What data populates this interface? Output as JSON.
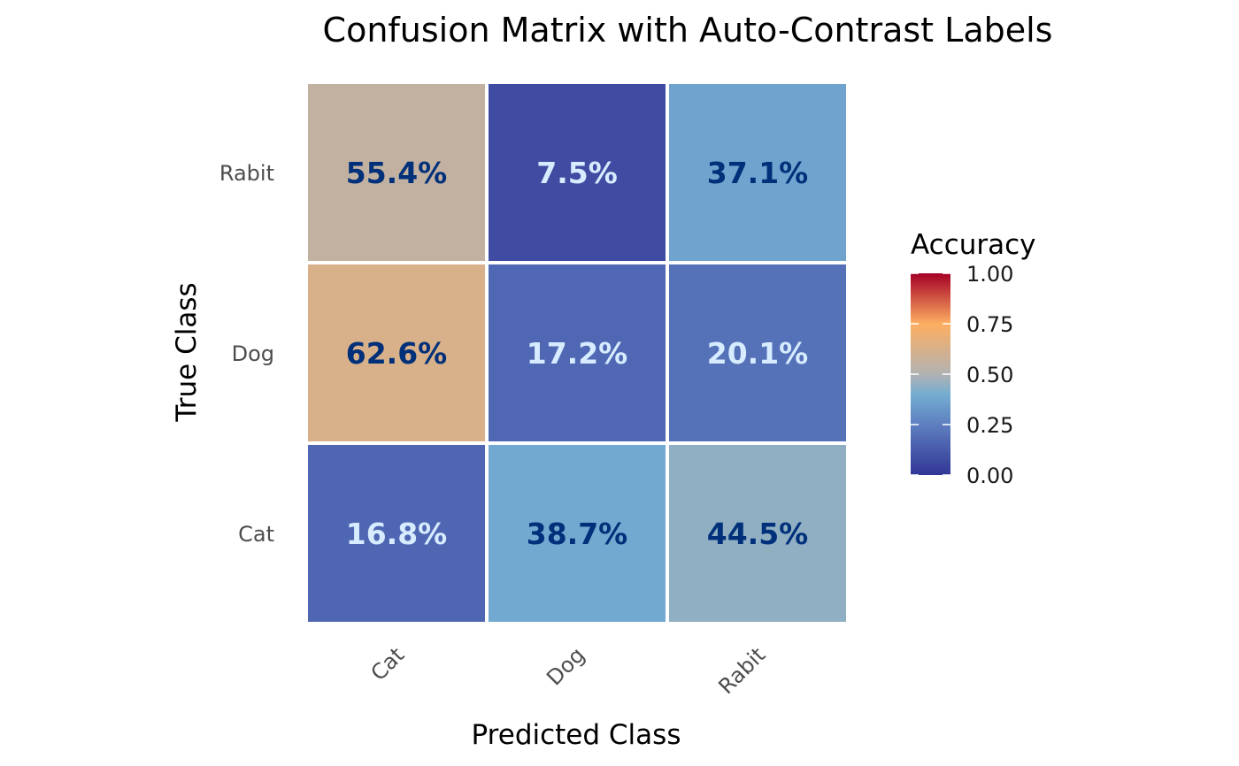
{
  "chart_data": {
    "type": "heatmap",
    "title": "Confusion Matrix with Auto-Contrast Labels",
    "xlabel": "Predicted Class",
    "ylabel": "True Class",
    "x_categories": [
      "Cat",
      "Dog",
      "Rabit"
    ],
    "y_categories": [
      "Cat",
      "Dog",
      "Rabit"
    ],
    "cells": [
      {
        "true": "Rabit",
        "predicted": "Cat",
        "value": 0.554,
        "label": "55.4%"
      },
      {
        "true": "Rabit",
        "predicted": "Dog",
        "value": 0.075,
        "label": "7.5%"
      },
      {
        "true": "Rabit",
        "predicted": "Rabit",
        "value": 0.371,
        "label": "37.1%"
      },
      {
        "true": "Dog",
        "predicted": "Cat",
        "value": 0.626,
        "label": "62.6%"
      },
      {
        "true": "Dog",
        "predicted": "Dog",
        "value": 0.172,
        "label": "17.2%"
      },
      {
        "true": "Dog",
        "predicted": "Rabit",
        "value": 0.201,
        "label": "20.1%"
      },
      {
        "true": "Cat",
        "predicted": "Cat",
        "value": 0.168,
        "label": "16.8%"
      },
      {
        "true": "Cat",
        "predicted": "Dog",
        "value": 0.387,
        "label": "38.7%"
      },
      {
        "true": "Cat",
        "predicted": "Rabit",
        "value": 0.445,
        "label": "44.5%"
      }
    ],
    "legend": {
      "title": "Accuracy",
      "position": "right",
      "range": [
        0,
        1
      ],
      "ticks": [
        "0.00",
        "0.25",
        "0.50",
        "0.75",
        "1.00"
      ]
    },
    "colorscale": [
      {
        "stop": 0.0,
        "color": "#313695"
      },
      {
        "stop": 0.25,
        "color": "#5e7fc0"
      },
      {
        "stop": 0.4,
        "color": "#74add1"
      },
      {
        "stop": 0.5,
        "color": "#b2b2b2"
      },
      {
        "stop": 0.75,
        "color": "#fdae61"
      },
      {
        "stop": 1.0,
        "color": "#a50026"
      }
    ],
    "label_colors": {
      "dark": "#00307a",
      "light": "#d7ecff"
    },
    "grid": false
  }
}
